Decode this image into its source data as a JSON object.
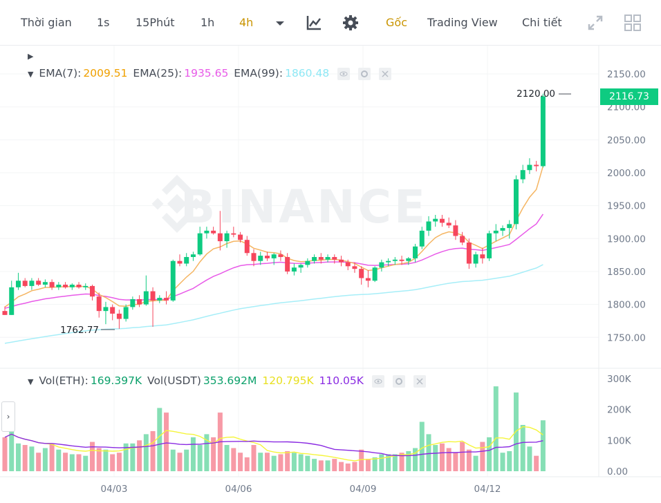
{
  "toolbar": {
    "time_label": "Thời gian",
    "intervals": [
      "1s",
      "15Phút",
      "1h",
      "4h"
    ],
    "active_interval": "4h",
    "view_modes": [
      "Gốc",
      "Trading View",
      "Chi tiết"
    ],
    "active_view": "Gốc",
    "icons": [
      "chevron-down-icon",
      "chart-indicator-icon",
      "gear-icon",
      "fullscreen-icon",
      "grid-layout-icon"
    ]
  },
  "legend_main": {
    "ema7_label": "EMA(7):",
    "ema7_value": "2009.51",
    "ema25_label": "EMA(25):",
    "ema25_value": "1935.65",
    "ema99_label": "EMA(99):",
    "ema99_value": "1860.48"
  },
  "legend_volume": {
    "label1": "Vol(ETH):",
    "value1": "169.397K",
    "label2": "Vol(USDT)",
    "value2": "353.692M",
    "value3": "120.795K",
    "value4": "110.05K"
  },
  "colors": {
    "up": "#0ecb81",
    "down": "#f6465d",
    "ema7": "#f0b90b",
    "ema25": "#e85ae8",
    "ema99": "#8ee8f5",
    "accent": "#c99400",
    "vol_ma1": "#f5f53b",
    "vol_ma2": "#8a2be2"
  },
  "price_tag": "2116.73",
  "high_marker": "2120.00",
  "low_marker": "1762.77",
  "watermark": "BINANCE",
  "chart_data": {
    "type": "candlestick",
    "price_axis": [
      "2150.00",
      "2100.00",
      "2050.00",
      "2000.00",
      "1950.00",
      "1900.00",
      "1850.00",
      "1800.00",
      "1750.00"
    ],
    "volume_axis": [
      "300K",
      "200K",
      "100K",
      "0.00"
    ],
    "x_labels": [
      "04/03",
      "04/06",
      "04/09",
      "04/12"
    ],
    "ylim": [
      1720,
      2170
    ],
    "candles_ohlc": [
      [
        1790,
        1797,
        1784,
        1784
      ],
      [
        1784,
        1836,
        1784,
        1826
      ],
      [
        1826,
        1848,
        1822,
        1836
      ],
      [
        1836,
        1840,
        1826,
        1828
      ],
      [
        1828,
        1840,
        1822,
        1836
      ],
      [
        1836,
        1840,
        1828,
        1830
      ],
      [
        1830,
        1838,
        1826,
        1834
      ],
      [
        1834,
        1838,
        1822,
        1826
      ],
      [
        1826,
        1834,
        1822,
        1830
      ],
      [
        1830,
        1834,
        1824,
        1826
      ],
      [
        1826,
        1832,
        1822,
        1830
      ],
      [
        1830,
        1834,
        1824,
        1826
      ],
      [
        1826,
        1832,
        1822,
        1828
      ],
      [
        1828,
        1830,
        1806,
        1812
      ],
      [
        1812,
        1818,
        1780,
        1790
      ],
      [
        1790,
        1804,
        1770,
        1796
      ],
      [
        1796,
        1800,
        1776,
        1786
      ],
      [
        1786,
        1792,
        1763,
        1778
      ],
      [
        1778,
        1800,
        1774,
        1796
      ],
      [
        1796,
        1812,
        1792,
        1808
      ],
      [
        1808,
        1814,
        1796,
        1800
      ],
      [
        1800,
        1844,
        1798,
        1820
      ],
      [
        1820,
        1826,
        1766,
        1806
      ],
      [
        1806,
        1814,
        1802,
        1810
      ],
      [
        1810,
        1820,
        1800,
        1806
      ],
      [
        1806,
        1868,
        1804,
        1866
      ],
      [
        1866,
        1876,
        1858,
        1862
      ],
      [
        1862,
        1878,
        1858,
        1872
      ],
      [
        1872,
        1880,
        1866,
        1876
      ],
      [
        1876,
        1918,
        1874,
        1908
      ],
      [
        1908,
        1918,
        1900,
        1912
      ],
      [
        1912,
        1918,
        1906,
        1908
      ],
      [
        1908,
        1942,
        1882,
        1896
      ],
      [
        1896,
        1912,
        1886,
        1908
      ],
      [
        1908,
        1918,
        1902,
        1906
      ],
      [
        1906,
        1910,
        1894,
        1898
      ],
      [
        1898,
        1904,
        1874,
        1878
      ],
      [
        1878,
        1884,
        1858,
        1866
      ],
      [
        1866,
        1880,
        1860,
        1874
      ],
      [
        1874,
        1880,
        1866,
        1870
      ],
      [
        1870,
        1878,
        1860,
        1876
      ],
      [
        1876,
        1882,
        1866,
        1872
      ],
      [
        1872,
        1878,
        1846,
        1850
      ],
      [
        1850,
        1862,
        1844,
        1856
      ],
      [
        1856,
        1862,
        1848,
        1860
      ],
      [
        1860,
        1870,
        1856,
        1866
      ],
      [
        1866,
        1876,
        1862,
        1872
      ],
      [
        1872,
        1878,
        1862,
        1868
      ],
      [
        1868,
        1876,
        1864,
        1872
      ],
      [
        1872,
        1876,
        1862,
        1868
      ],
      [
        1868,
        1874,
        1858,
        1864
      ],
      [
        1864,
        1868,
        1852,
        1858
      ],
      [
        1858,
        1864,
        1848,
        1854
      ],
      [
        1854,
        1858,
        1830,
        1840
      ],
      [
        1840,
        1852,
        1826,
        1836
      ],
      [
        1836,
        1858,
        1834,
        1856
      ],
      [
        1856,
        1868,
        1850,
        1864
      ],
      [
        1864,
        1870,
        1858,
        1866
      ],
      [
        1866,
        1872,
        1860,
        1868
      ],
      [
        1868,
        1874,
        1860,
        1866
      ],
      [
        1866,
        1872,
        1860,
        1870
      ],
      [
        1870,
        1892,
        1864,
        1888
      ],
      [
        1888,
        1918,
        1884,
        1912
      ],
      [
        1912,
        1934,
        1904,
        1926
      ],
      [
        1926,
        1936,
        1918,
        1930
      ],
      [
        1930,
        1936,
        1918,
        1924
      ],
      [
        1924,
        1932,
        1916,
        1920
      ],
      [
        1920,
        1928,
        1898,
        1904
      ],
      [
        1904,
        1910,
        1890,
        1894
      ],
      [
        1894,
        1900,
        1854,
        1862
      ],
      [
        1862,
        1880,
        1856,
        1876
      ],
      [
        1876,
        1886,
        1862,
        1870
      ],
      [
        1870,
        1912,
        1866,
        1908
      ],
      [
        1908,
        1922,
        1896,
        1912
      ],
      [
        1912,
        1920,
        1904,
        1916
      ],
      [
        1916,
        1928,
        1900,
        1922
      ],
      [
        1922,
        1996,
        1914,
        1990
      ],
      [
        1990,
        2012,
        1984,
        2004
      ],
      [
        2004,
        2022,
        1998,
        2012
      ],
      [
        2012,
        2018,
        2002,
        2010
      ],
      [
        2010,
        2120,
        2008,
        2116
      ]
    ],
    "volumes_k": [
      110,
      130,
      90,
      85,
      80,
      60,
      75,
      90,
      70,
      60,
      55,
      55,
      50,
      95,
      75,
      70,
      55,
      60,
      90,
      90,
      100,
      120,
      130,
      205,
      190,
      70,
      60,
      70,
      110,
      85,
      120,
      110,
      190,
      85,
      75,
      60,
      45,
      85,
      60,
      60,
      50,
      55,
      65,
      60,
      55,
      50,
      40,
      35,
      35,
      40,
      30,
      25,
      30,
      70,
      40,
      45,
      55,
      55,
      55,
      60,
      65,
      75,
      160,
      120,
      85,
      90,
      75,
      60,
      95,
      70,
      50,
      95,
      110,
      275,
      60,
      65,
      255,
      150,
      80,
      50,
      165
    ]
  }
}
